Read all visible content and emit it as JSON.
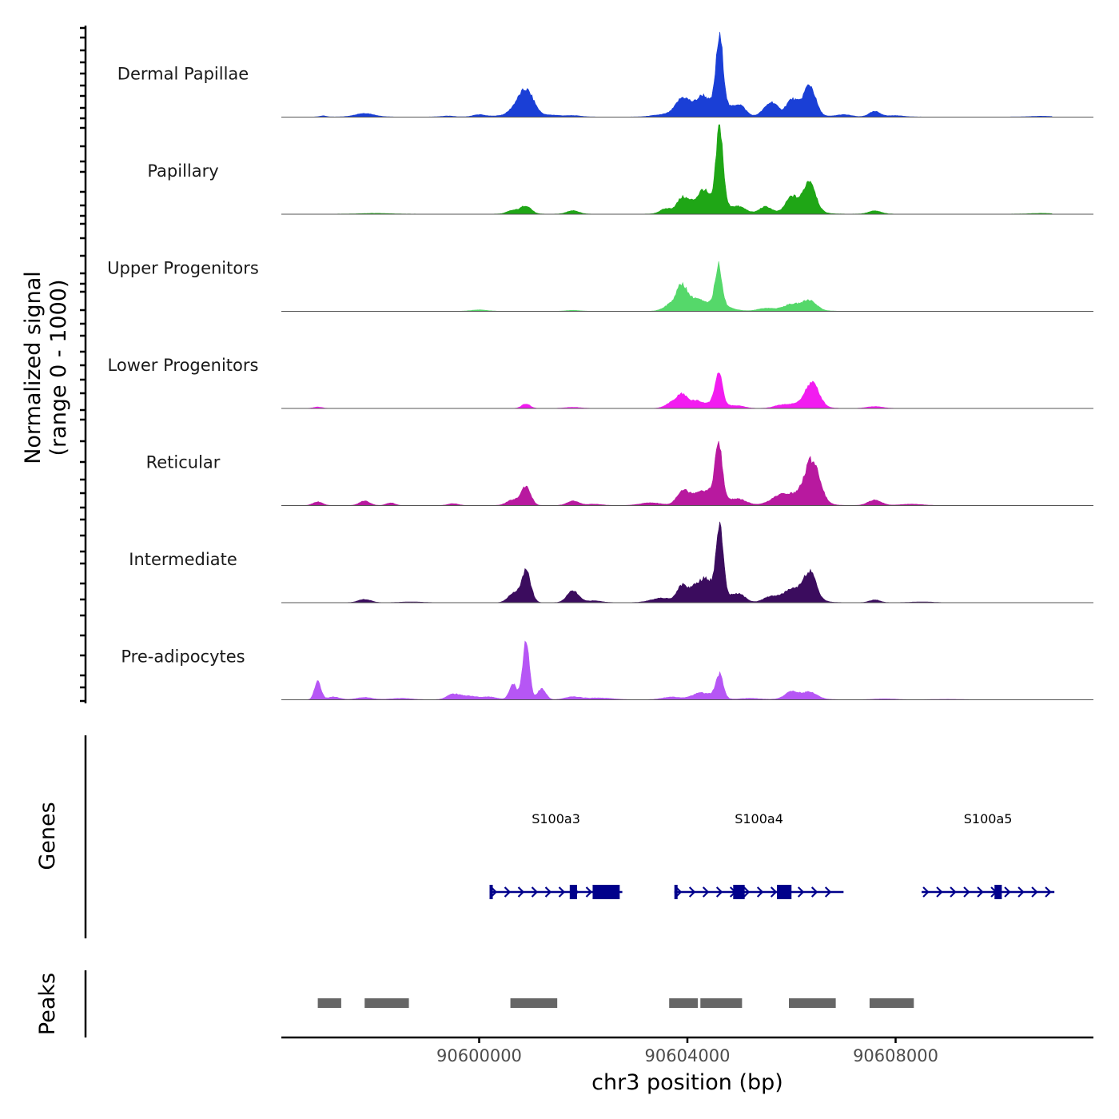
{
  "chart_data": {
    "type": "area",
    "title": "",
    "ylabel_line1": "Normalized signal",
    "ylabel_line2": "(range 0 - 1000)",
    "xlabel": "chr3 position (bp)",
    "xlim": [
      90596200,
      90611800
    ],
    "xticks": [
      {
        "value": 90600000,
        "label": "90600000"
      },
      {
        "value": 90604000,
        "label": "90604000"
      },
      {
        "value": 90608000,
        "label": "90608000"
      }
    ],
    "ylim": [
      0,
      1000
    ],
    "series": [
      {
        "name": "Dermal Papillae",
        "color": "#1a3fd6",
        "base": 2,
        "bumps": [
          [
            90597000,
            60,
            12
          ],
          [
            90597800,
            180,
            40
          ],
          [
            90599400,
            120,
            10
          ],
          [
            90600000,
            120,
            25
          ],
          [
            90600400,
            150,
            12
          ],
          [
            90600660,
            120,
            50
          ],
          [
            90600900,
            150,
            300
          ],
          [
            90601400,
            150,
            20
          ],
          [
            90601800,
            150,
            15
          ],
          [
            90603400,
            150,
            15
          ],
          [
            90603800,
            180,
            60
          ],
          [
            90603900,
            110,
            140
          ],
          [
            90604100,
            120,
            100
          ],
          [
            90604300,
            100,
            160
          ],
          [
            90604620,
            70,
            760
          ],
          [
            90604580,
            220,
            130
          ],
          [
            90605000,
            120,
            120
          ],
          [
            90605500,
            110,
            70
          ],
          [
            90605650,
            100,
            130
          ],
          [
            90606000,
            110,
            150
          ],
          [
            90606350,
            110,
            300
          ],
          [
            90606200,
            220,
            70
          ],
          [
            90607000,
            150,
            25
          ],
          [
            90607600,
            110,
            60
          ],
          [
            90608000,
            150,
            15
          ],
          [
            90610800,
            200,
            8
          ]
        ]
      },
      {
        "name": "Papillary",
        "color": "#1fa616",
        "base": 2,
        "bumps": [
          [
            90598000,
            250,
            8
          ],
          [
            90600650,
            110,
            40
          ],
          [
            90600900,
            100,
            90
          ],
          [
            90601800,
            110,
            40
          ],
          [
            90603600,
            120,
            60
          ],
          [
            90603900,
            100,
            170
          ],
          [
            90604100,
            100,
            90
          ],
          [
            90604300,
            90,
            160
          ],
          [
            90604620,
            65,
            860
          ],
          [
            90604500,
            230,
            150
          ],
          [
            90605000,
            140,
            70
          ],
          [
            90605500,
            120,
            80
          ],
          [
            90606000,
            110,
            140
          ],
          [
            90606350,
            110,
            310
          ],
          [
            90606200,
            250,
            80
          ],
          [
            90607600,
            120,
            35
          ],
          [
            90610800,
            200,
            8
          ]
        ]
      },
      {
        "name": "Upper Progenitors",
        "color": "#55d86a",
        "base": 1,
        "bumps": [
          [
            90600000,
            150,
            15
          ],
          [
            90601800,
            130,
            10
          ],
          [
            90603700,
            140,
            80
          ],
          [
            90603900,
            100,
            260
          ],
          [
            90604150,
            120,
            100
          ],
          [
            90604600,
            65,
            430
          ],
          [
            90604500,
            260,
            90
          ],
          [
            90605500,
            150,
            30
          ],
          [
            90606000,
            150,
            50
          ],
          [
            90606350,
            130,
            100
          ],
          [
            90606100,
            300,
            30
          ]
        ]
      },
      {
        "name": "Lower Progenitors",
        "color": "#f21cf0",
        "base": 1,
        "bumps": [
          [
            90596900,
            80,
            15
          ],
          [
            90600900,
            80,
            50
          ],
          [
            90601800,
            150,
            12
          ],
          [
            90603700,
            120,
            60
          ],
          [
            90603900,
            100,
            140
          ],
          [
            90604150,
            110,
            60
          ],
          [
            90604600,
            70,
            340
          ],
          [
            90604500,
            250,
            60
          ],
          [
            90605000,
            120,
            20
          ],
          [
            90605800,
            140,
            25
          ],
          [
            90606400,
            130,
            250
          ],
          [
            90606200,
            260,
            50
          ],
          [
            90607600,
            150,
            20
          ]
        ]
      },
      {
        "name": "Reticular",
        "color": "#b8199f",
        "base": 1,
        "bumps": [
          [
            90596900,
            90,
            40
          ],
          [
            90597800,
            100,
            50
          ],
          [
            90598300,
            80,
            30
          ],
          [
            90599500,
            100,
            20
          ],
          [
            90600650,
            120,
            60
          ],
          [
            90600900,
            90,
            210
          ],
          [
            90601800,
            110,
            50
          ],
          [
            90602200,
            150,
            15
          ],
          [
            90603300,
            200,
            30
          ],
          [
            90603900,
            110,
            140
          ],
          [
            90604200,
            180,
            80
          ],
          [
            90604600,
            70,
            580
          ],
          [
            90604450,
            250,
            120
          ],
          [
            90605000,
            150,
            60
          ],
          [
            90605800,
            200,
            80
          ],
          [
            90606400,
            140,
            450
          ],
          [
            90606150,
            300,
            90
          ],
          [
            90607600,
            130,
            60
          ],
          [
            90608300,
            200,
            15
          ]
        ]
      },
      {
        "name": "Intermediate",
        "color": "#3b0c5e",
        "base": 1,
        "bumps": [
          [
            90597800,
            120,
            35
          ],
          [
            90598700,
            200,
            8
          ],
          [
            90600650,
            100,
            100
          ],
          [
            90600900,
            90,
            350
          ],
          [
            90601800,
            110,
            130
          ],
          [
            90602200,
            150,
            20
          ],
          [
            90603500,
            200,
            50
          ],
          [
            90603900,
            100,
            180
          ],
          [
            90604150,
            100,
            140
          ],
          [
            90604350,
            90,
            140
          ],
          [
            90604620,
            65,
            760
          ],
          [
            90604500,
            240,
            150
          ],
          [
            90605000,
            120,
            80
          ],
          [
            90605600,
            140,
            60
          ],
          [
            90606000,
            150,
            90
          ],
          [
            90606350,
            120,
            290
          ],
          [
            90606150,
            280,
            70
          ],
          [
            90607600,
            100,
            30
          ],
          [
            90608500,
            200,
            8
          ]
        ]
      },
      {
        "name": "Pre-adipocytes",
        "color": "#b656f5",
        "base": 1,
        "bumps": [
          [
            90596900,
            60,
            210
          ],
          [
            90597200,
            120,
            30
          ],
          [
            90597800,
            150,
            25
          ],
          [
            90598500,
            200,
            15
          ],
          [
            90599500,
            120,
            60
          ],
          [
            90599800,
            150,
            40
          ],
          [
            90600200,
            150,
            30
          ],
          [
            90600650,
            70,
            180
          ],
          [
            90600900,
            65,
            660
          ],
          [
            90601200,
            80,
            120
          ],
          [
            90601800,
            150,
            30
          ],
          [
            90602300,
            250,
            20
          ],
          [
            90603700,
            180,
            30
          ],
          [
            90604200,
            150,
            40
          ],
          [
            90604620,
            70,
            260
          ],
          [
            90604400,
            200,
            50
          ],
          [
            90605200,
            200,
            15
          ],
          [
            90606000,
            120,
            70
          ],
          [
            90606350,
            130,
            60
          ],
          [
            90606200,
            280,
            30
          ],
          [
            90607800,
            200,
            10
          ],
          [
            90609000,
            250,
            5
          ]
        ]
      }
    ],
    "genes": [
      {
        "name": "S100a3",
        "start": 90600200,
        "end": 90602750,
        "strand": "+",
        "exons": [
          [
            90600200,
            90600250
          ],
          [
            90601740,
            90601880
          ],
          [
            90602180,
            90602700
          ]
        ]
      },
      {
        "name": "S100a4",
        "start": 90603750,
        "end": 90607000,
        "strand": "+",
        "exons": [
          [
            90603750,
            90603800
          ],
          [
            90604880,
            90605100
          ],
          [
            90605720,
            90606000
          ]
        ]
      },
      {
        "name": "S100a5",
        "start": 90608500,
        "end": 90611050,
        "strand": "+",
        "exons": [
          [
            90609900,
            90610040
          ]
        ]
      }
    ],
    "peaks": [
      [
        90596900,
        90597350
      ],
      [
        90597800,
        90598650
      ],
      [
        90600600,
        90601500
      ],
      [
        90603650,
        90604200
      ],
      [
        90604250,
        90605050
      ],
      [
        90605950,
        90606850
      ],
      [
        90607500,
        90608350
      ]
    ],
    "genes_label": "Genes",
    "peaks_label": "Peaks",
    "colors": {
      "gene": "#00008b",
      "peak": "#666666",
      "baseline": "#555555"
    }
  }
}
